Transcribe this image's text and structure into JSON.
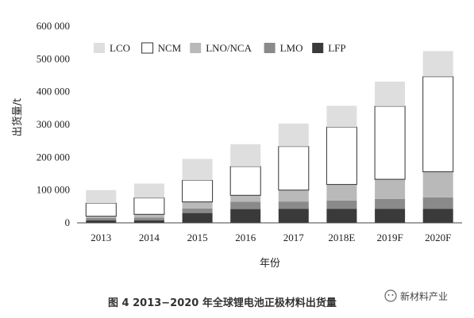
{
  "chart_data": {
    "type": "bar",
    "stacked": true,
    "categories": [
      "2013",
      "2014",
      "2015",
      "2016",
      "2017",
      "2018E",
      "2019F",
      "2020F"
    ],
    "series": [
      {
        "name": "LFP",
        "color": "#3a3a3a",
        "values": [
          8000,
          8000,
          30000,
          42000,
          43000,
          43000,
          43000,
          43000
        ]
      },
      {
        "name": "LMO",
        "color": "#8a8a8a",
        "values": [
          7000,
          8000,
          14000,
          22000,
          22000,
          25000,
          30000,
          35000
        ]
      },
      {
        "name": "LNO/NCA",
        "color": "#b9b9b9",
        "values": [
          5000,
          10000,
          20000,
          20000,
          35000,
          49000,
          60000,
          78000
        ]
      },
      {
        "name": "NCM",
        "color": "#ffffff",
        "values": [
          40000,
          50000,
          66000,
          88000,
          133000,
          175000,
          223000,
          290000
        ]
      },
      {
        "name": "LCO",
        "color": "#dedede",
        "values": [
          40000,
          44000,
          65000,
          68000,
          70000,
          65000,
          75000,
          78000
        ]
      }
    ],
    "legend_order": [
      "LCO",
      "NCM",
      "LNO/NCA",
      "LMO",
      "LFP"
    ],
    "legend_position": "top-left",
    "ylim": [
      0,
      600000
    ],
    "yticks": [
      0,
      100000,
      200000,
      300000,
      400000,
      500000,
      600000
    ],
    "ytick_labels": [
      "0",
      "100 000",
      "200 000",
      "300 000",
      "400 000",
      "500 000",
      "600 000"
    ],
    "ylabel": "出货量/t",
    "xlabel": "年份",
    "grid": false
  },
  "caption": "图 4  2013−2020 年全球锂电池正极材料出货量",
  "watermark": "新材料产业"
}
